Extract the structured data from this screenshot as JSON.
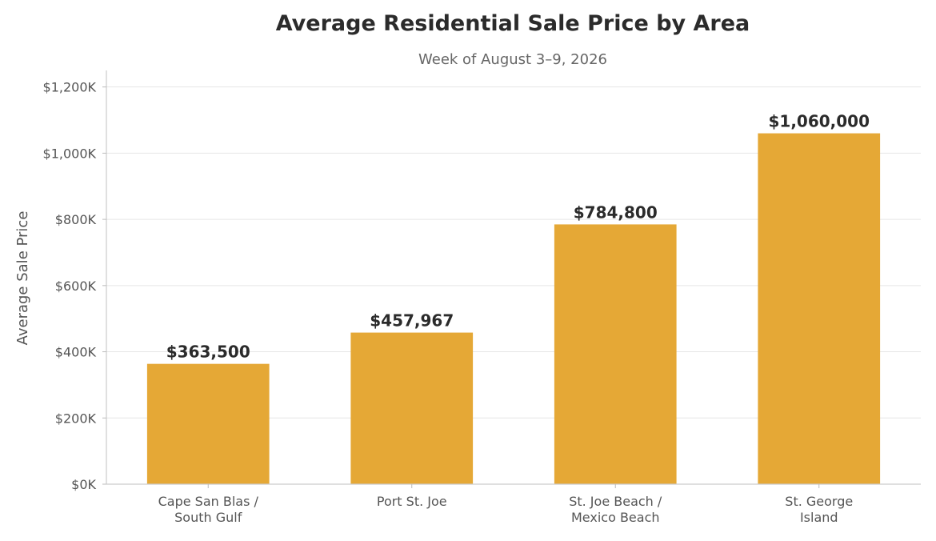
{
  "chart_data": {
    "type": "bar",
    "title": "Average Residential Sale Price by Area",
    "subtitle": "Week of August 3–9, 2026",
    "xlabel": "",
    "ylabel": "Average Sale Price",
    "categories": [
      [
        "Cape San Blas /",
        "South Gulf"
      ],
      [
        "Port St. Joe"
      ],
      [
        "St. Joe Beach /",
        "Mexico Beach"
      ],
      [
        "St. George",
        "Island"
      ]
    ],
    "values": [
      363500,
      457967,
      784800,
      1060000
    ],
    "value_labels": [
      "$363,500",
      "$457,967",
      "$784,800",
      "$1,060,000"
    ],
    "ylim": [
      0,
      1250000
    ],
    "yticks": [
      0,
      200000,
      400000,
      600000,
      800000,
      1000000,
      1200000
    ],
    "ytick_labels": [
      "$0K",
      "$200K",
      "$400K",
      "$600K",
      "$800K",
      "$1,000K",
      "$1,200K"
    ],
    "grid": true,
    "bar_color": "#E5A836"
  }
}
